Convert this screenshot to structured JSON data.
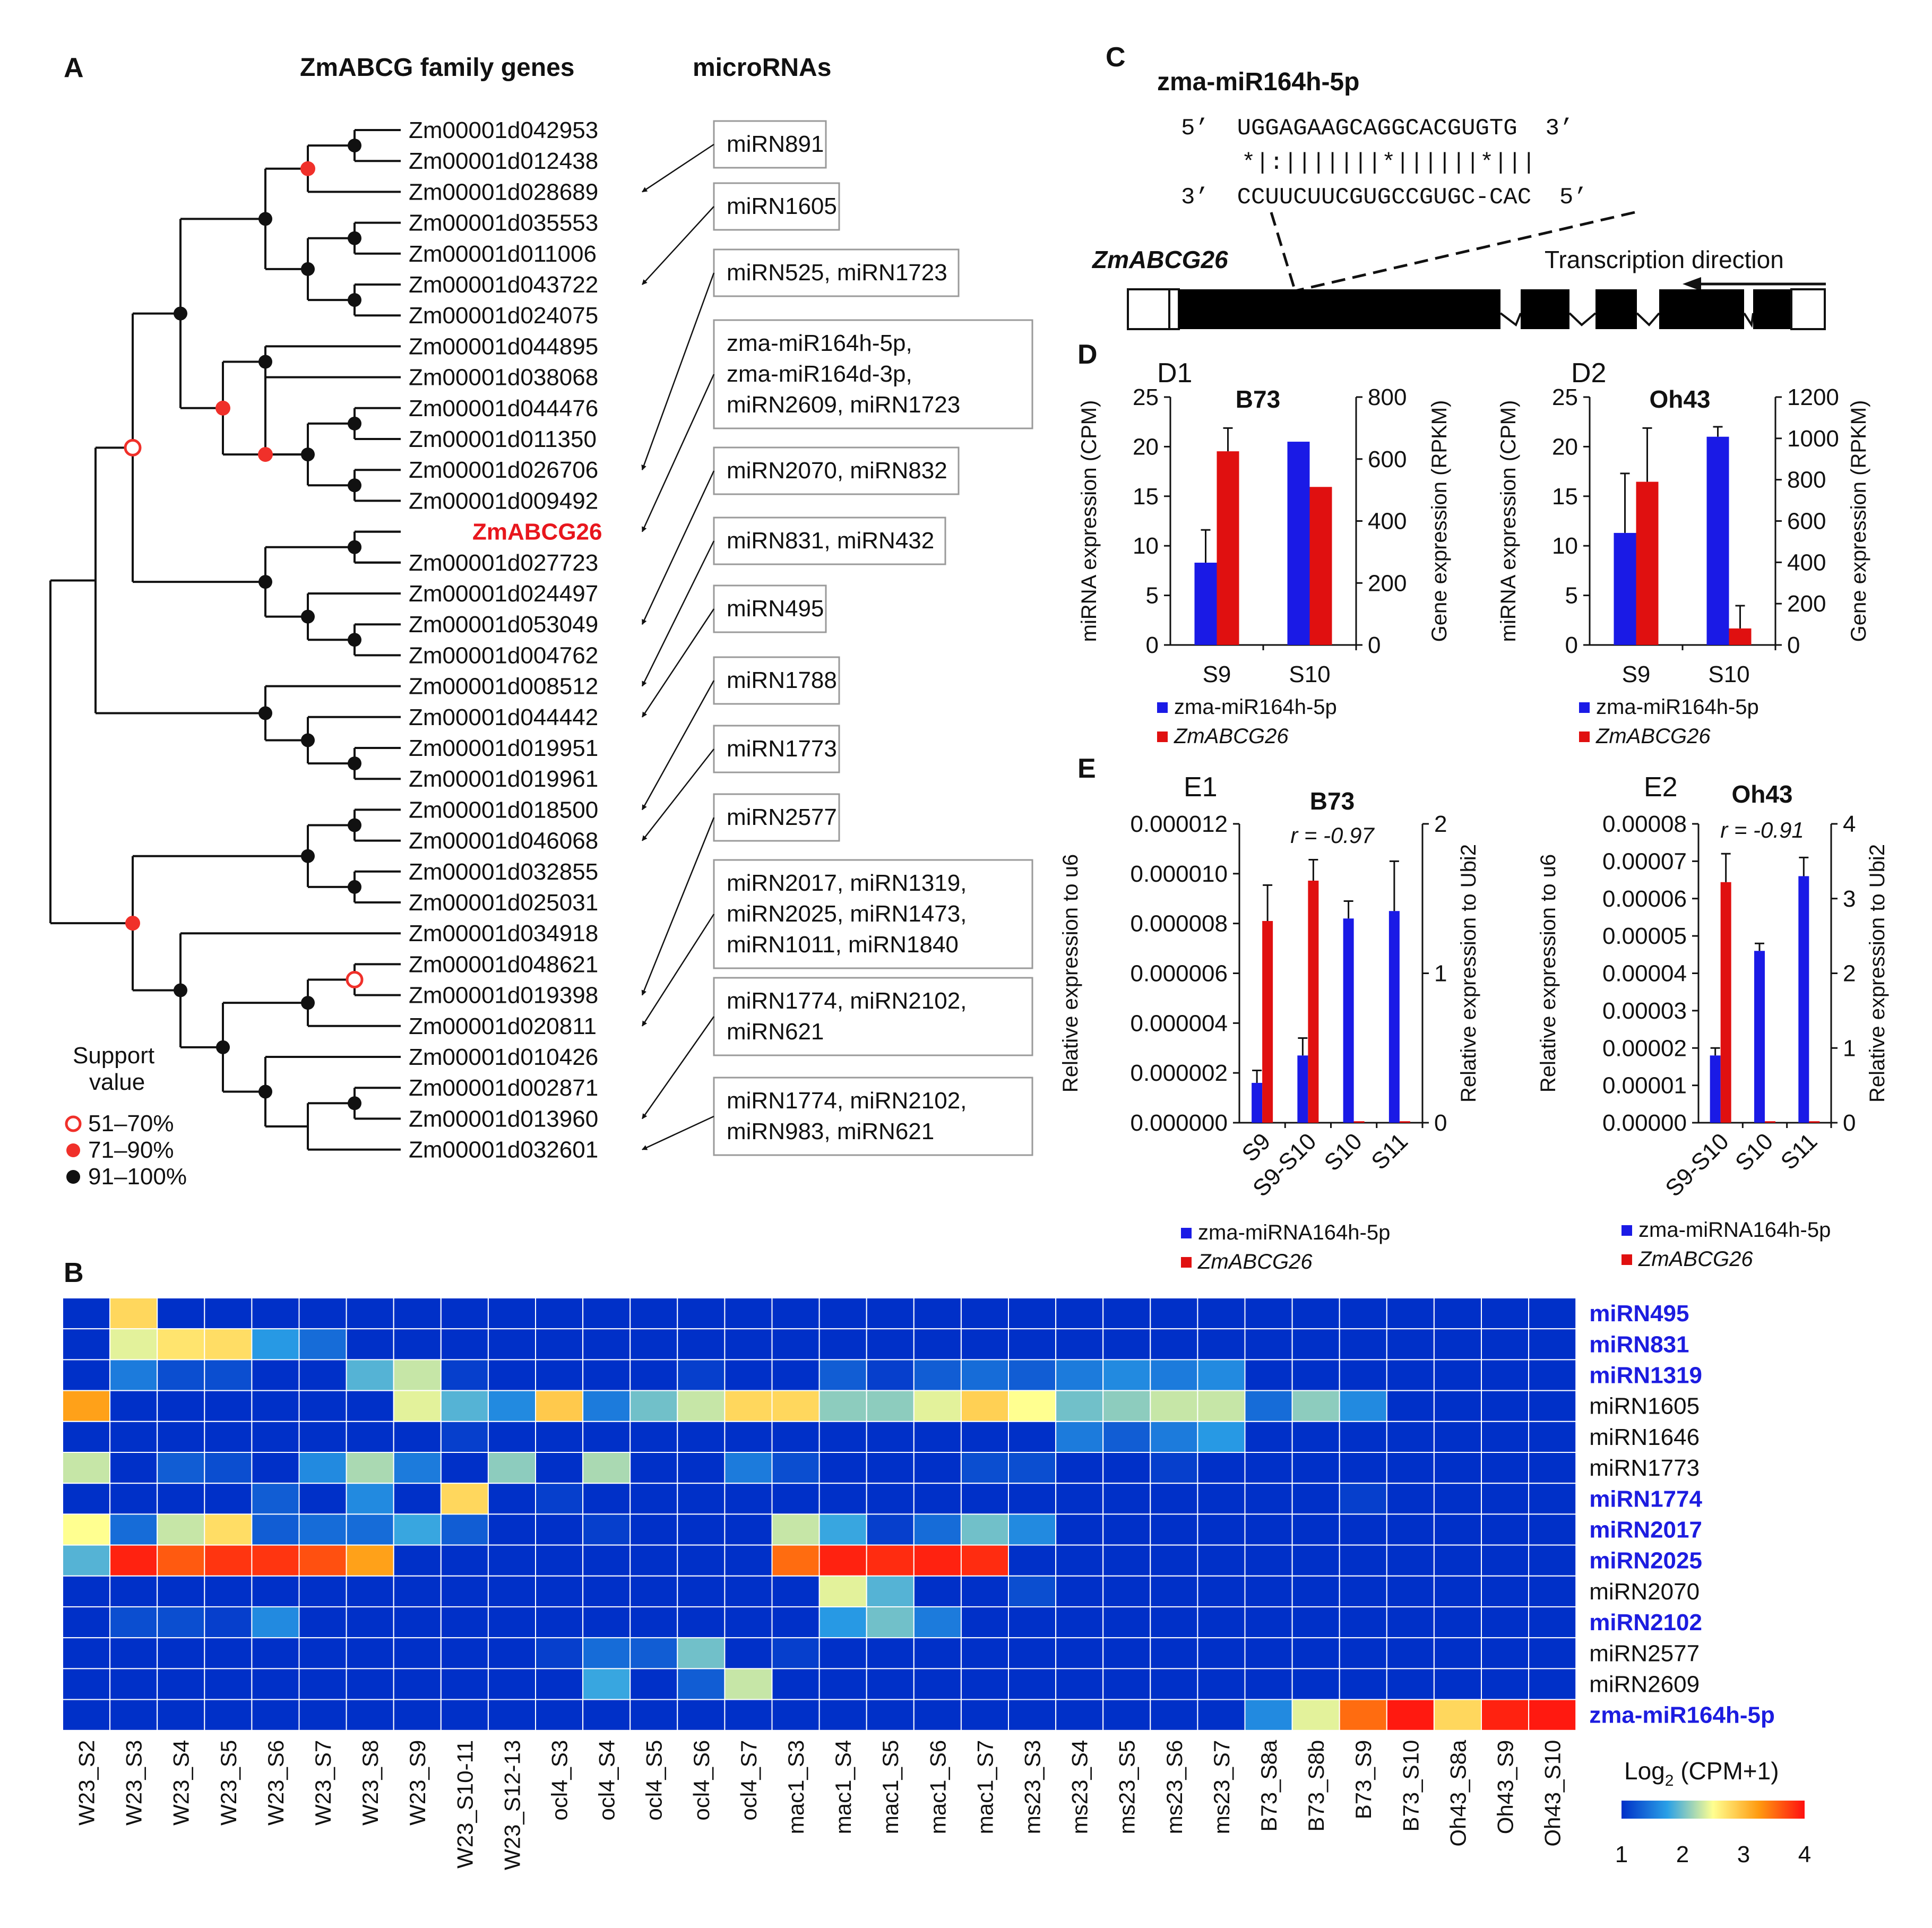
{
  "panels": {
    "A": "A",
    "B": "B",
    "C": "C",
    "D": "D",
    "E": "E",
    "D1": "D1",
    "D2": "D2",
    "E1": "E1",
    "E2": "E2"
  },
  "panel_a": {
    "header_genes": "ZmABCG family genes",
    "header_mirnas": "microRNAs",
    "genes": [
      "Zm00001d042953",
      "Zm00001d012438",
      "Zm00001d028689",
      "Zm00001d035553",
      "Zm00001d011006",
      "Zm00001d043722",
      "Zm00001d024075",
      "Zm00001d044895",
      "Zm00001d038068",
      "Zm00001d044476",
      "Zm00001d011350",
      "Zm00001d026706",
      "Zm00001d009492",
      "ZmABCG26",
      "Zm00001d027723",
      "Zm00001d024497",
      "Zm00001d053049",
      "Zm00001d004762",
      "Zm00001d008512",
      "Zm00001d044442",
      "Zm00001d019951",
      "Zm00001d019961",
      "Zm00001d018500",
      "Zm00001d046068",
      "Zm00001d032855",
      "Zm00001d025031",
      "Zm00001d034918",
      "Zm00001d048621",
      "Zm00001d019398",
      "Zm00001d020811",
      "Zm00001d010426",
      "Zm00001d002871",
      "Zm00001d013960",
      "Zm00001d032601"
    ],
    "highlight_gene": "ZmABCG26",
    "highlight_color": "#e8161d",
    "mirna_boxes": [
      {
        "lines": [
          "miRN891"
        ]
      },
      {
        "lines": [
          "miRN1605"
        ]
      },
      {
        "lines": [
          "miRN525, miRN1723"
        ]
      },
      {
        "lines": [
          "zma-miR164h-5p,",
          "zma-miR164d-3p,",
          "miRN2609, miRN1723"
        ]
      },
      {
        "lines": [
          "miRN2070, miRN832"
        ]
      },
      {
        "lines": [
          "miRN831, miRN432"
        ]
      },
      {
        "lines": [
          "miRN495"
        ]
      },
      {
        "lines": [
          "miRN1788"
        ]
      },
      {
        "lines": [
          "miRN1773"
        ]
      },
      {
        "lines": [
          "miRN2577"
        ]
      },
      {
        "lines": [
          "miRN2017, miRN1319,",
          "miRN2025, miRN1473,",
          "miRN1011, miRN1840"
        ]
      },
      {
        "lines": [
          "miRN1774, miRN2102,",
          "miRN621"
        ]
      },
      {
        "lines": [
          "miRN1774, miRN2102,",
          "miRN983, miRN621"
        ]
      }
    ],
    "support_legend": {
      "title_line1": "Support",
      "title_line2": "value",
      "items": [
        "51–70%",
        "71–90%",
        "91–100%"
      ],
      "colors": [
        "#ffffff",
        "#f0302a",
        "#111111"
      ]
    }
  },
  "panel_c": {
    "title": "zma-miR164h-5p",
    "mirna_seq": "5’  UGGAGAAGCAGGCACGUGTG  3’",
    "pairing": "*|:|||||||*||||||*|||",
    "target_seq": "3’  CCUUCUUCGUGCCGUGC-CAC  5’",
    "gene_label": "ZmABCG26",
    "direction_label": "Transcription direction"
  },
  "chart_data": [
    {
      "id": "D1",
      "type": "bar",
      "title": "B73",
      "categories": [
        "S9",
        "S10"
      ],
      "series": [
        {
          "name": "zma-miR164h-5p",
          "axis": "left",
          "values": [
            8.3,
            20.5
          ],
          "errors": [
            3.3,
            0.0
          ],
          "color": "#1a1ae6"
        },
        {
          "name": "ZmABCG26",
          "axis": "right",
          "values": [
            625,
            510
          ],
          "errors": [
            75,
            0
          ],
          "color": "#e01010"
        }
      ],
      "ylabel_left": "miRNA expression (CPM)",
      "ylim_left": [
        0,
        25
      ],
      "yticks_left": [
        "0",
        "5",
        "10",
        "15",
        "20",
        "25"
      ],
      "ylabel_right": "Gene expression (RPKM)",
      "ylim_right": [
        0,
        800
      ],
      "yticks_right": [
        "0",
        "200",
        "400",
        "600",
        "800"
      ],
      "legend": [
        "zma-miR164h-5p",
        "ZmABCG26"
      ]
    },
    {
      "id": "D2",
      "type": "bar",
      "title": "Oh43",
      "categories": [
        "S9",
        "S10"
      ],
      "series": [
        {
          "name": "zma-miR164h-5p",
          "axis": "left",
          "values": [
            11.3,
            21.0
          ],
          "errors": [
            6.0,
            1.0
          ],
          "color": "#1a1ae6"
        },
        {
          "name": "ZmABCG26",
          "axis": "right",
          "values": [
            790,
            80
          ],
          "errors": [
            260,
            110
          ],
          "color": "#e01010"
        }
      ],
      "ylabel_left": "miRNA expression (CPM)",
      "ylim_left": [
        0,
        25
      ],
      "yticks_left": [
        "0",
        "5",
        "10",
        "15",
        "20",
        "25"
      ],
      "ylabel_right": "Gene expression (RPKM)",
      "ylim_right": [
        0,
        1200
      ],
      "yticks_right": [
        "0",
        "200",
        "400",
        "600",
        "800",
        "1000",
        "1200"
      ],
      "legend": [
        "zma-miR164h-5p",
        "ZmABCG26"
      ]
    },
    {
      "id": "E1",
      "type": "bar",
      "title": "B73",
      "annotation": "r = -0.97",
      "categories": [
        "S9",
        "S9-S10",
        "S10",
        "S11"
      ],
      "series": [
        {
          "name": "zma-miRNA164h-5p",
          "axis": "left",
          "values": [
            1.6e-06,
            2.7e-06,
            8.2e-06,
            8.5e-06
          ],
          "errors": [
            5e-07,
            7e-07,
            7e-07,
            2e-06
          ],
          "color": "#1a1ae6"
        },
        {
          "name": "ZmABCG26",
          "axis": "right",
          "values": [
            1.35,
            1.62,
            0.01,
            0.01
          ],
          "errors": [
            0.24,
            0.14,
            0,
            0
          ],
          "color": "#e01010"
        }
      ],
      "ylabel_left": "Relative expression to u6",
      "ylim_left": [
        0,
        1.2e-05
      ],
      "yticks_left": [
        "0.000000",
        "0.000002",
        "0.000004",
        "0.000006",
        "0.000008",
        "0.000010",
        "0.000012"
      ],
      "ylabel_right": "Relative expression to Ubi2",
      "ylim_right": [
        0,
        2
      ],
      "yticks_right": [
        "0",
        "1",
        "2"
      ],
      "legend": [
        "zma-miRNA164h-5p",
        "ZmABCG26"
      ]
    },
    {
      "id": "E2",
      "type": "bar",
      "title": "Oh43",
      "annotation": "r = -0.91",
      "categories": [
        "S9-S10",
        "S10",
        "S11"
      ],
      "series": [
        {
          "name": "zma-miRNA164h-5p",
          "axis": "left",
          "values": [
            1.8e-05,
            4.6e-05,
            6.6e-05
          ],
          "errors": [
            2e-06,
            2e-06,
            5e-06
          ],
          "color": "#1a1ae6"
        },
        {
          "name": "ZmABCG26",
          "axis": "right",
          "values": [
            3.22,
            0.02,
            0.02
          ],
          "errors": [
            0.38,
            0,
            0
          ],
          "color": "#e01010"
        }
      ],
      "ylabel_left": "Relative expression to u6",
      "ylim_left": [
        0,
        8e-05
      ],
      "yticks_left": [
        "0.00000",
        "0.00001",
        "0.00002",
        "0.00003",
        "0.00004",
        "0.00005",
        "0.00006",
        "0.00007",
        "0.00008"
      ],
      "ylabel_right": "Relative expression to Ubi2",
      "ylim_right": [
        0,
        4
      ],
      "yticks_right": [
        "0",
        "1",
        "2",
        "3",
        "4"
      ],
      "legend": [
        "zma-miRNA164h-5p",
        "ZmABCG26"
      ]
    },
    {
      "id": "B",
      "type": "heatmap",
      "rows": [
        "miRN495",
        "miRN831",
        "miRN1319",
        "miRN1605",
        "miRN1646",
        "miRN1773",
        "miRN1774",
        "miRN2017",
        "miRN2025",
        "miRN2070",
        "miRN2102",
        "miRN2577",
        "miRN2609",
        "zma-miR164h-5p"
      ],
      "rows_highlighted": [
        "miRN495",
        "miRN831",
        "miRN1319",
        "miRN1774",
        "miRN2017",
        "miRN2025",
        "miRN2102",
        "zma-miR164h-5p"
      ],
      "highlight_color": "#1c1ce0",
      "columns": [
        "W23_S2",
        "W23_S3",
        "W23_S4",
        "W23_S5",
        "W23_S6",
        "W23_S7",
        "W23_S8",
        "W23_S9",
        "W23_S10-11",
        "W23_S12-13",
        "ocl4_S3",
        "ocl4_S4",
        "ocl4_S5",
        "ocl4_S6",
        "ocl4_S7",
        "mac1_S3",
        "mac1_S4",
        "mac1_S5",
        "mac1_S6",
        "mac1_S7",
        "ms23_S3",
        "ms23_S4",
        "ms23_S5",
        "ms23_S6",
        "ms23_S7",
        "B73_S8a",
        "B73_S8b",
        "B73_S9",
        "B73_S10",
        "Oh43_S8a",
        "Oh43_S9",
        "Oh43_S10"
      ],
      "values": [
        [
          1.0,
          2.8,
          1.0,
          1.0,
          1.0,
          1.0,
          1.0,
          1.0,
          1.0,
          1.0,
          1.0,
          1.0,
          1.0,
          1.0,
          1.0,
          1.0,
          1.0,
          1.0,
          1.0,
          1.0,
          1.0,
          1.0,
          1.0,
          1.0,
          1.0,
          1.0,
          1.0,
          1.0,
          1.0,
          1.0,
          1.0,
          1.0
        ],
        [
          1.0,
          2.4,
          2.7,
          2.75,
          1.7,
          1.4,
          1.0,
          1.0,
          1.0,
          1.0,
          1.0,
          1.0,
          1.0,
          1.0,
          1.0,
          1.0,
          1.0,
          1.0,
          1.0,
          1.0,
          1.0,
          1.0,
          1.0,
          1.0,
          1.0,
          1.0,
          1.0,
          1.0,
          1.0,
          1.0,
          1.0,
          1.0
        ],
        [
          1.0,
          1.5,
          1.2,
          1.2,
          1.0,
          1.0,
          1.9,
          2.3,
          1.1,
          1.0,
          1.0,
          1.0,
          1.0,
          1.1,
          1.0,
          1.0,
          1.3,
          1.1,
          1.3,
          1.4,
          1.3,
          1.5,
          1.6,
          1.5,
          1.6,
          1.0,
          1.0,
          1.0,
          1.0,
          1.0,
          1.0,
          1.0
        ],
        [
          3.2,
          1.0,
          1.0,
          1.0,
          1.0,
          1.0,
          1.0,
          2.4,
          1.9,
          1.6,
          2.9,
          1.5,
          2.0,
          2.3,
          2.8,
          2.8,
          2.1,
          2.1,
          2.4,
          2.85,
          2.5,
          2.0,
          2.1,
          2.3,
          2.3,
          1.4,
          2.1,
          1.6,
          1.0,
          1.0,
          1.0,
          1.0
        ],
        [
          1.0,
          1.0,
          1.0,
          1.0,
          1.0,
          1.0,
          1.0,
          1.0,
          1.1,
          1.0,
          1.0,
          1.0,
          1.0,
          1.0,
          1.0,
          1.0,
          1.0,
          1.0,
          1.0,
          1.0,
          1.0,
          1.5,
          1.3,
          1.5,
          1.7,
          1.0,
          1.0,
          1.0,
          1.0,
          1.0,
          1.0,
          1.0
        ],
        [
          2.3,
          1.0,
          1.3,
          1.2,
          1.0,
          1.6,
          2.2,
          1.5,
          1.0,
          2.1,
          1.0,
          2.2,
          1.0,
          1.0,
          1.5,
          1.2,
          1.0,
          1.0,
          1.0,
          1.2,
          1.2,
          1.0,
          1.0,
          1.1,
          1.0,
          1.0,
          1.0,
          1.0,
          1.0,
          1.0,
          1.0,
          1.0
        ],
        [
          1.0,
          1.0,
          1.0,
          1.0,
          1.3,
          1.0,
          1.6,
          1.0,
          2.8,
          1.0,
          1.1,
          1.0,
          1.0,
          1.0,
          1.0,
          1.0,
          1.0,
          1.0,
          1.0,
          1.0,
          1.0,
          1.0,
          1.0,
          1.0,
          1.0,
          1.0,
          1.0,
          1.1,
          1.0,
          1.0,
          1.0,
          1.0
        ],
        [
          2.5,
          1.4,
          2.3,
          2.75,
          1.3,
          1.4,
          1.4,
          1.8,
          1.3,
          1.0,
          1.0,
          1.1,
          1.0,
          1.0,
          1.0,
          2.3,
          1.8,
          1.1,
          1.4,
          2.0,
          1.6,
          1.0,
          1.0,
          1.0,
          1.0,
          1.0,
          1.0,
          1.0,
          1.0,
          1.0,
          1.0,
          1.0
        ],
        [
          1.9,
          3.9,
          3.6,
          3.8,
          3.8,
          3.65,
          3.2,
          1.0,
          1.0,
          1.0,
          1.0,
          1.0,
          1.0,
          1.0,
          1.0,
          3.5,
          3.9,
          3.85,
          3.9,
          3.85,
          1.0,
          1.0,
          1.0,
          1.0,
          1.0,
          1.0,
          1.0,
          1.0,
          1.0,
          1.0,
          1.0,
          1.0
        ],
        [
          1.0,
          1.0,
          1.0,
          1.0,
          1.0,
          1.0,
          1.0,
          1.0,
          1.0,
          1.0,
          1.0,
          1.0,
          1.0,
          1.0,
          1.0,
          1.0,
          2.4,
          1.9,
          1.0,
          1.0,
          1.2,
          1.0,
          1.0,
          1.0,
          1.0,
          1.0,
          1.0,
          1.0,
          1.0,
          1.0,
          1.0,
          1.0
        ],
        [
          1.0,
          1.2,
          1.2,
          1.1,
          1.6,
          1.0,
          1.0,
          1.0,
          1.0,
          1.0,
          1.0,
          1.0,
          1.0,
          1.0,
          1.0,
          1.0,
          1.7,
          2.0,
          1.5,
          1.0,
          1.0,
          1.0,
          1.0,
          1.0,
          1.0,
          1.0,
          1.0,
          1.0,
          1.0,
          1.0,
          1.0,
          1.0
        ],
        [
          1.0,
          1.0,
          1.0,
          1.0,
          1.0,
          1.0,
          1.0,
          1.0,
          1.0,
          1.0,
          1.1,
          1.4,
          1.3,
          2.0,
          1.0,
          1.1,
          1.0,
          1.0,
          1.0,
          1.0,
          1.0,
          1.0,
          1.0,
          1.0,
          1.0,
          1.0,
          1.0,
          1.0,
          1.0,
          1.0,
          1.0,
          1.0
        ],
        [
          1.0,
          1.0,
          1.0,
          1.0,
          1.0,
          1.0,
          1.0,
          1.0,
          1.0,
          1.0,
          1.0,
          1.8,
          1.0,
          1.3,
          2.3,
          1.0,
          1.0,
          1.0,
          1.0,
          1.0,
          1.0,
          1.0,
          1.0,
          1.0,
          1.0,
          1.0,
          1.0,
          1.0,
          1.0,
          1.0,
          1.0,
          1.0
        ],
        [
          1.0,
          1.0,
          1.0,
          1.0,
          1.0,
          1.0,
          1.0,
          1.0,
          1.0,
          1.0,
          1.0,
          1.0,
          1.0,
          1.0,
          1.0,
          1.0,
          1.0,
          1.0,
          1.0,
          1.0,
          1.0,
          1.0,
          1.0,
          1.0,
          1.0,
          1.6,
          2.4,
          3.5,
          3.95,
          2.8,
          3.9,
          3.95
        ]
      ],
      "colorbar": {
        "label": "Log",
        "sub": "2",
        "label_rest": " (CPM+1)",
        "ticks": [
          "1",
          "2",
          "3",
          "4"
        ],
        "range": [
          1,
          4
        ]
      }
    }
  ]
}
